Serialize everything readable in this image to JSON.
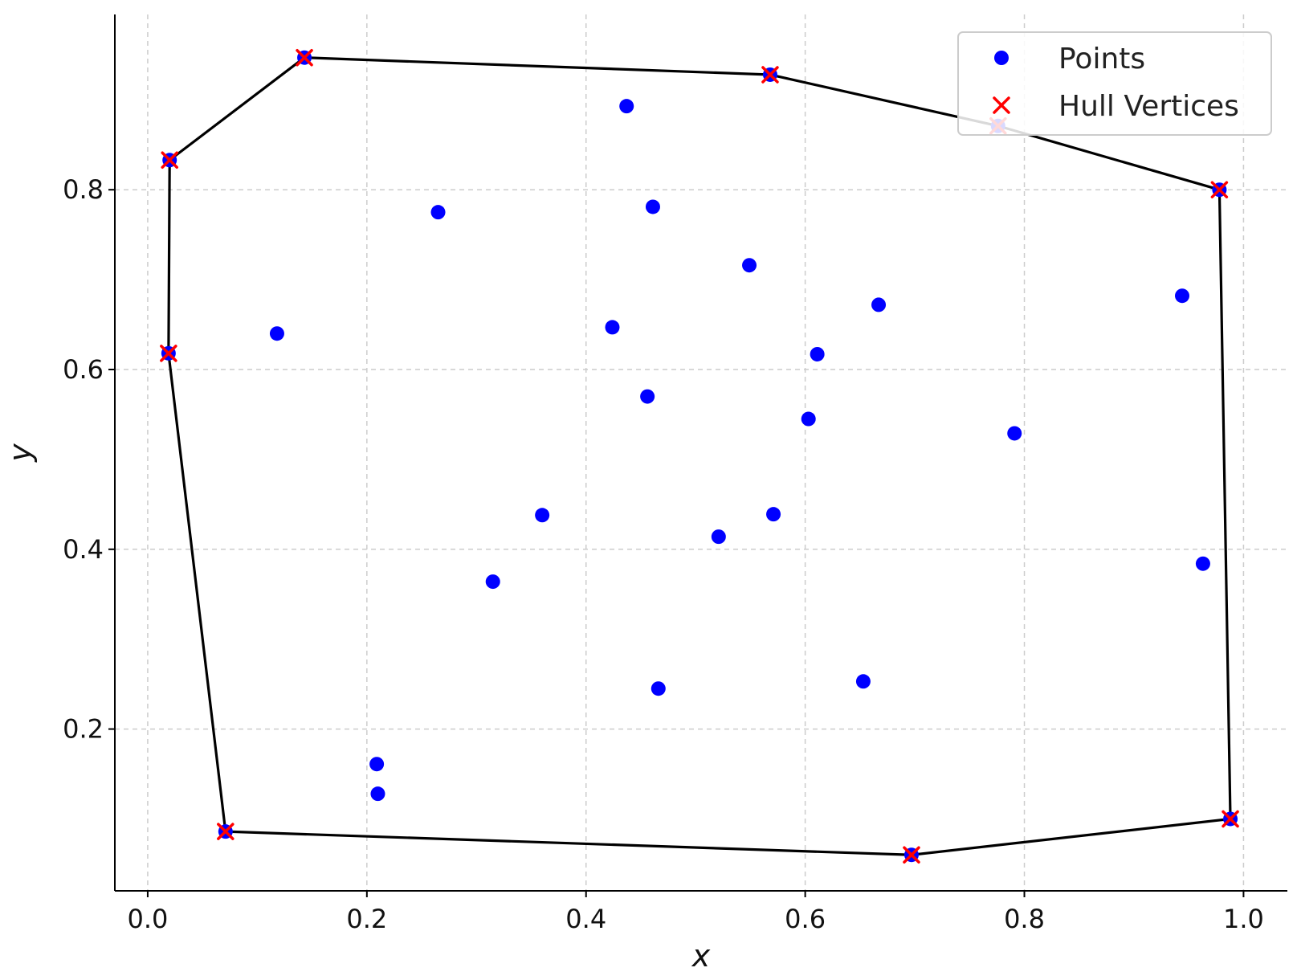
{
  "chart_data": {
    "type": "scatter",
    "title": "",
    "xlabel": "x",
    "ylabel": "y",
    "xlim": [
      -0.03,
      1.04
    ],
    "ylim": [
      0.02,
      0.995
    ],
    "xticks": [
      0.0,
      0.2,
      0.4,
      0.6,
      0.8,
      1.0
    ],
    "xtick_labels": [
      "0.0",
      "0.2",
      "0.4",
      "0.6",
      "0.8",
      "1.0"
    ],
    "yticks": [
      0.2,
      0.4,
      0.6,
      0.8
    ],
    "ytick_labels": [
      "0.2",
      "0.4",
      "0.6",
      "0.8"
    ],
    "grid": true,
    "legend_position": "top-right",
    "colors": {
      "points": "#0000ff",
      "hull_vertices": "#ff0000",
      "hull_line": "#000000",
      "grid": "#cccccc"
    },
    "series": [
      {
        "name": "Points",
        "marker": "circle",
        "x": [
          0.143,
          0.568,
          0.437,
          0.776,
          0.02,
          0.978,
          0.265,
          0.461,
          0.549,
          0.944,
          0.667,
          0.118,
          0.424,
          0.611,
          0.019,
          0.456,
          0.603,
          0.791,
          0.36,
          0.571,
          0.521,
          0.315,
          0.963,
          0.466,
          0.653,
          0.209,
          0.21,
          0.071,
          0.697,
          0.988
        ],
        "y": [
          0.947,
          0.928,
          0.893,
          0.871,
          0.833,
          0.8,
          0.775,
          0.781,
          0.716,
          0.682,
          0.672,
          0.64,
          0.647,
          0.617,
          0.618,
          0.57,
          0.545,
          0.529,
          0.438,
          0.439,
          0.414,
          0.364,
          0.384,
          0.245,
          0.253,
          0.161,
          0.128,
          0.086,
          0.06,
          0.1
        ]
      },
      {
        "name": "Hull Vertices",
        "marker": "x",
        "x": [
          0.143,
          0.568,
          0.776,
          0.978,
          0.988,
          0.697,
          0.071,
          0.019,
          0.02
        ],
        "y": [
          0.947,
          0.928,
          0.871,
          0.8,
          0.1,
          0.06,
          0.086,
          0.618,
          0.833
        ]
      }
    ]
  }
}
